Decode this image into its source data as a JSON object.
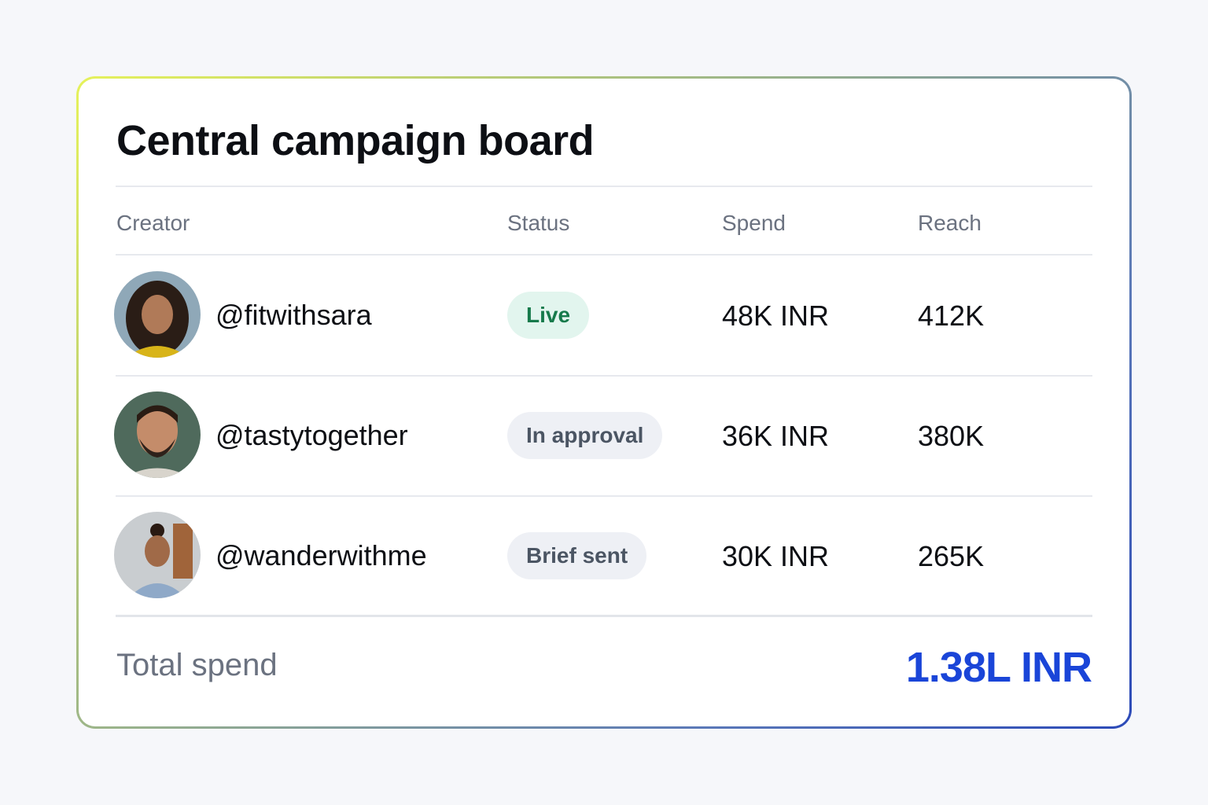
{
  "title": "Central campaign board",
  "table": {
    "header": [
      "Creator",
      "Status",
      "Spend",
      "Reach"
    ],
    "rows": [
      [
        "@fitwithsara",
        "Live",
        "48K INR",
        "412K"
      ],
      [
        "@tastytogether",
        "In approval",
        "36K INR",
        "380K"
      ],
      [
        "@wanderwithme",
        "Brief sent",
        "30K INR",
        "265K"
      ]
    ]
  },
  "total": {
    "label": "Total spend",
    "value": "1.38L INR"
  }
}
